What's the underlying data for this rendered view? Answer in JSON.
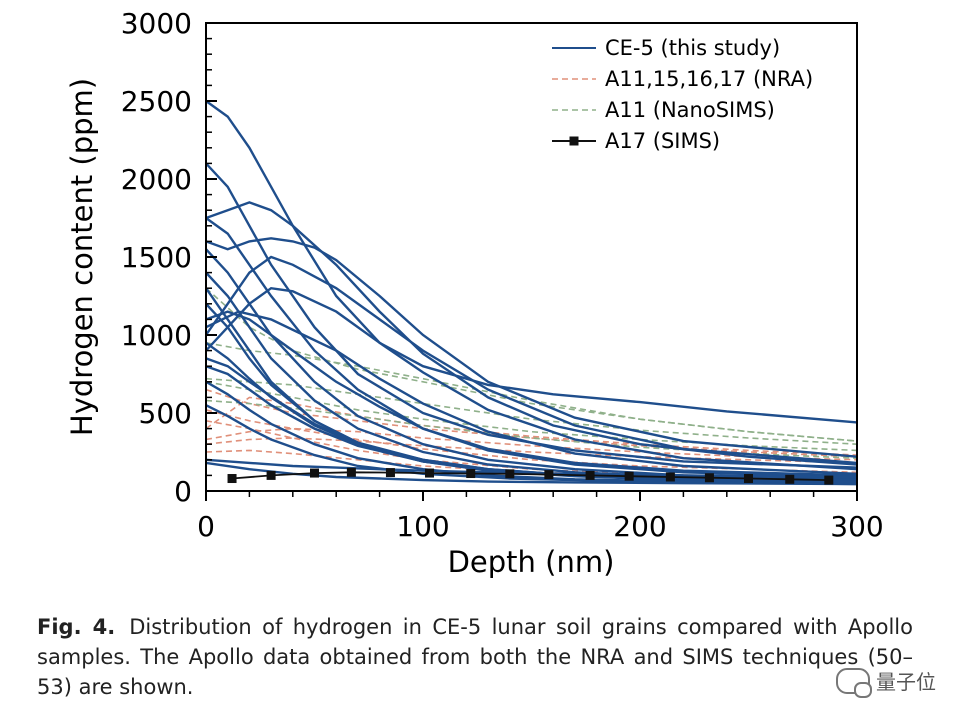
{
  "chart_data": {
    "type": "line",
    "xlabel": "Depth (nm)",
    "ylabel": "Hydrogen content (ppm)",
    "xlim": [
      0,
      300
    ],
    "ylim": [
      0,
      3000
    ],
    "xticks": [
      0,
      100,
      200,
      300
    ],
    "yticks": [
      0,
      500,
      1000,
      1500,
      2000,
      2500,
      3000
    ],
    "legend_position": "top-right",
    "grid": false,
    "legend": [
      {
        "label": "CE-5 (this study)",
        "color": "#1f4e8c",
        "style": "solid"
      },
      {
        "label": "A11,15,16,17 (NRA)",
        "color": "#e0907a",
        "style": "dashed"
      },
      {
        "label": "A11 (NanoSIMS)",
        "color": "#8fb08a",
        "style": "dashed"
      },
      {
        "label": "A17 (SIMS)",
        "color": "#111111",
        "style": "solid-square-markers"
      }
    ],
    "series": [
      {
        "group": "CE-5",
        "x": [
          0,
          10,
          20,
          40,
          60,
          80,
          100,
          130,
          160,
          200,
          240,
          300
        ],
        "y": [
          2500,
          2400,
          2200,
          1700,
          1250,
          950,
          800,
          680,
          620,
          570,
          510,
          440
        ]
      },
      {
        "group": "CE-5",
        "x": [
          0,
          10,
          20,
          30,
          50,
          70,
          100,
          130,
          170,
          220,
          300
        ],
        "y": [
          2100,
          1950,
          1700,
          1450,
          1050,
          750,
          500,
          360,
          260,
          190,
          150
        ]
      },
      {
        "group": "CE-5",
        "x": [
          0,
          10,
          20,
          30,
          40,
          60,
          80,
          100,
          130,
          160,
          200,
          250,
          300
        ],
        "y": [
          1750,
          1800,
          1850,
          1800,
          1700,
          1450,
          1150,
          880,
          600,
          420,
          300,
          220,
          170
        ]
      },
      {
        "group": "CE-5",
        "x": [
          0,
          10,
          20,
          30,
          40,
          50,
          60,
          80,
          100,
          130,
          170,
          220,
          300
        ],
        "y": [
          1600,
          1550,
          1600,
          1620,
          1600,
          1560,
          1480,
          1250,
          1000,
          700,
          470,
          320,
          220
        ]
      },
      {
        "group": "CE-5",
        "x": [
          0,
          10,
          20,
          30,
          40,
          60,
          80,
          100,
          130,
          170,
          220,
          300
        ],
        "y": [
          1000,
          1200,
          1400,
          1500,
          1450,
          1300,
          1100,
          900,
          650,
          420,
          270,
          180
        ]
      },
      {
        "group": "CE-5",
        "x": [
          0,
          10,
          20,
          30,
          40,
          60,
          80,
          100,
          130,
          170,
          220,
          300
        ],
        "y": [
          900,
          1050,
          1200,
          1300,
          1280,
          1150,
          950,
          760,
          520,
          330,
          210,
          140
        ]
      },
      {
        "group": "CE-5",
        "x": [
          0,
          10,
          20,
          30,
          50,
          70,
          100,
          130,
          170,
          220,
          300
        ],
        "y": [
          1750,
          1650,
          1450,
          1250,
          900,
          650,
          400,
          260,
          170,
          120,
          90
        ]
      },
      {
        "group": "CE-5",
        "x": [
          0,
          10,
          20,
          30,
          50,
          70,
          100,
          130,
          170,
          220,
          300
        ],
        "y": [
          1550,
          1400,
          1200,
          1000,
          700,
          480,
          300,
          200,
          140,
          100,
          80
        ]
      },
      {
        "group": "CE-5",
        "x": [
          0,
          10,
          20,
          30,
          50,
          70,
          100,
          130,
          170,
          220,
          300
        ],
        "y": [
          1400,
          1250,
          1050,
          850,
          580,
          400,
          250,
          170,
          120,
          90,
          70
        ]
      },
      {
        "group": "CE-5",
        "x": [
          0,
          10,
          20,
          30,
          40,
          60,
          80,
          100,
          130,
          170,
          220,
          300
        ],
        "y": [
          1100,
          1150,
          1100,
          1000,
          900,
          700,
          540,
          400,
          270,
          180,
          130,
          100
        ]
      },
      {
        "group": "CE-5",
        "x": [
          0,
          10,
          20,
          30,
          50,
          70,
          100,
          130,
          170,
          220,
          300
        ],
        "y": [
          1200,
          1050,
          850,
          680,
          450,
          310,
          200,
          140,
          100,
          80,
          60
        ]
      },
      {
        "group": "CE-5",
        "x": [
          0,
          10,
          20,
          30,
          50,
          70,
          100,
          130,
          170,
          220,
          300
        ],
        "y": [
          950,
          850,
          720,
          600,
          420,
          300,
          200,
          140,
          100,
          75,
          60
        ]
      },
      {
        "group": "CE-5",
        "x": [
          0,
          10,
          20,
          30,
          50,
          70,
          100,
          130,
          170,
          220,
          300
        ],
        "y": [
          800,
          750,
          650,
          550,
          400,
          290,
          190,
          130,
          95,
          70,
          55
        ]
      },
      {
        "group": "CE-5",
        "x": [
          0,
          10,
          20,
          30,
          50,
          70,
          100,
          130,
          170,
          220,
          300
        ],
        "y": [
          700,
          620,
          520,
          430,
          300,
          210,
          140,
          100,
          75,
          60,
          50
        ]
      },
      {
        "group": "CE-5",
        "x": [
          0,
          10,
          20,
          30,
          50,
          70,
          100,
          140,
          200,
          300
        ],
        "y": [
          550,
          480,
          400,
          330,
          230,
          160,
          110,
          80,
          60,
          45
        ]
      },
      {
        "group": "CE-5",
        "x": [
          0,
          20,
          40,
          60,
          80,
          100,
          130,
          170,
          220,
          300
        ],
        "y": [
          200,
          180,
          160,
          150,
          140,
          130,
          120,
          110,
          100,
          90
        ]
      },
      {
        "group": "CE-5",
        "x": [
          0,
          20,
          40,
          60,
          80,
          100,
          130,
          170,
          220,
          300
        ],
        "y": [
          180,
          140,
          110,
          90,
          80,
          70,
          60,
          55,
          50,
          45
        ]
      },
      {
        "group": "CE-5",
        "x": [
          0,
          10,
          20,
          30,
          50,
          70,
          100,
          140,
          200,
          300
        ],
        "y": [
          1300,
          1100,
          900,
          700,
          450,
          300,
          190,
          120,
          80,
          55
        ]
      },
      {
        "group": "CE-5",
        "x": [
          0,
          15,
          30,
          45,
          60,
          80,
          100,
          130,
          170,
          220,
          300
        ],
        "y": [
          1050,
          1150,
          1100,
          1000,
          900,
          720,
          560,
          380,
          240,
          160,
          110
        ]
      },
      {
        "group": "CE-5",
        "x": [
          0,
          10,
          20,
          35,
          50,
          70,
          100,
          140,
          200,
          300
        ],
        "y": [
          850,
          800,
          700,
          560,
          430,
          300,
          190,
          120,
          80,
          60
        ]
      },
      {
        "group": "NRA",
        "x": [
          0,
          20,
          40,
          70,
          100,
          150,
          200,
          250,
          300
        ],
        "y": [
          650,
          560,
          500,
          450,
          400,
          340,
          290,
          250,
          220
        ]
      },
      {
        "group": "NRA",
        "x": [
          0,
          20,
          40,
          70,
          100,
          150,
          200,
          250,
          300
        ],
        "y": [
          400,
          600,
          560,
          480,
          420,
          350,
          300,
          260,
          230
        ]
      },
      {
        "group": "NRA",
        "x": [
          0,
          20,
          40,
          70,
          100,
          150,
          200,
          250,
          300
        ],
        "y": [
          330,
          380,
          400,
          380,
          340,
          290,
          250,
          220,
          200
        ]
      },
      {
        "group": "NRA",
        "x": [
          0,
          20,
          40,
          70,
          100,
          150,
          200,
          250,
          300
        ],
        "y": [
          300,
          330,
          340,
          320,
          290,
          250,
          220,
          200,
          180
        ]
      },
      {
        "group": "NRA",
        "x": [
          0,
          20,
          40,
          70,
          100,
          150,
          200,
          250,
          300
        ],
        "y": [
          520,
          450,
          400,
          330,
          270,
          200,
          160,
          140,
          120
        ]
      },
      {
        "group": "NRA",
        "x": [
          0,
          20,
          40,
          70,
          100,
          150,
          200,
          250,
          300
        ],
        "y": [
          450,
          400,
          340,
          260,
          200,
          140,
          110,
          90,
          80
        ]
      },
      {
        "group": "NRA",
        "x": [
          0,
          20,
          40,
          70,
          100,
          150,
          200,
          250,
          300
        ],
        "y": [
          250,
          260,
          240,
          200,
          160,
          120,
          100,
          90,
          80
        ]
      },
      {
        "group": "NanoSIMS",
        "x": [
          0,
          20,
          40,
          70,
          100,
          150,
          200,
          250,
          300
        ],
        "y": [
          1300,
          1050,
          900,
          780,
          700,
          560,
          460,
          380,
          320
        ]
      },
      {
        "group": "NanoSIMS",
        "x": [
          0,
          20,
          40,
          70,
          100,
          150,
          200,
          250,
          300
        ],
        "y": [
          950,
          900,
          870,
          800,
          720,
          580,
          460,
          380,
          320
        ]
      },
      {
        "group": "NanoSIMS",
        "x": [
          0,
          20,
          40,
          70,
          100,
          150,
          200,
          250,
          300
        ],
        "y": [
          720,
          700,
          680,
          620,
          560,
          460,
          390,
          340,
          300
        ]
      },
      {
        "group": "NanoSIMS",
        "x": [
          0,
          20,
          40,
          70,
          100,
          150,
          200,
          250,
          300
        ],
        "y": [
          700,
          650,
          600,
          520,
          460,
          380,
          330,
          290,
          260
        ]
      },
      {
        "group": "NanoSIMS",
        "x": [
          0,
          20,
          40,
          70,
          100,
          150,
          200,
          250,
          300
        ],
        "y": [
          580,
          560,
          530,
          480,
          420,
          340,
          280,
          240,
          210
        ]
      }
    ],
    "sims_series": {
      "label": "A17 (SIMS)",
      "x": [
        12,
        30,
        50,
        67,
        85,
        103,
        122,
        140,
        158,
        177,
        195,
        214,
        232,
        250,
        269,
        287
      ],
      "y": [
        80,
        100,
        115,
        120,
        118,
        115,
        112,
        110,
        105,
        100,
        95,
        90,
        85,
        80,
        75,
        70
      ]
    }
  },
  "caption": {
    "label": "Fig. 4.",
    "text": "Distribution of hydrogen in CE-5 lunar soil grains compared with Apollo samples. The Apollo data obtained from both the NRA and SIMS techniques (50–53) are shown."
  },
  "watermark": {
    "text": "量子位"
  }
}
